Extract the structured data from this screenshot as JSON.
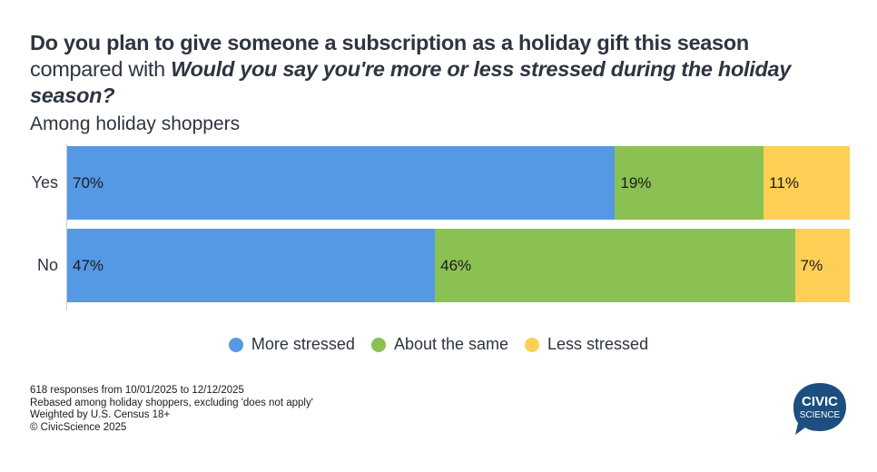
{
  "chart_data": {
    "type": "bar",
    "orientation": "horizontal-stacked-100",
    "title_bold": "Do you plan to give someone a subscription as a holiday gift this season",
    "title_connector": " compared with ",
    "title_italic": "Would you say you're more or less stressed during the holiday season?",
    "subtitle": "Among holiday shoppers",
    "categories": [
      "Yes",
      "No"
    ],
    "series": [
      {
        "name": "More stressed",
        "color": "#5599e5",
        "values": [
          70,
          47
        ]
      },
      {
        "name": "About the same",
        "color": "#8bc152",
        "values": [
          19,
          46
        ]
      },
      {
        "name": "Less stressed",
        "color": "#fdd055",
        "values": [
          11,
          7
        ]
      }
    ],
    "xlim": [
      0,
      100
    ],
    "legend": "bottom",
    "grid": false
  },
  "notes": [
    "618 responses from 10/01/2025 to 12/12/2025",
    "Rebased among holiday shoppers, excluding 'does not apply'",
    "Weighted by U.S. Census 18+",
    "© CivicScience 2025"
  ],
  "logo": {
    "line1": "CIVIC",
    "line2": "SCIENCE",
    "color": "#1c4f7f"
  }
}
